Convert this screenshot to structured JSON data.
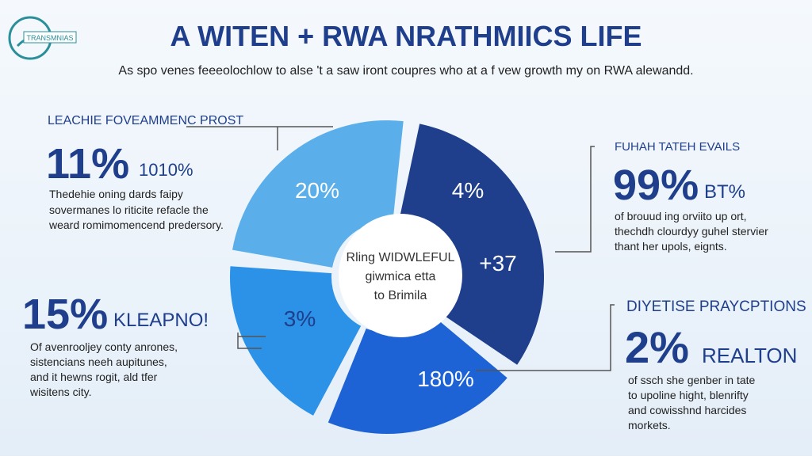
{
  "logo": "TRANSMNIAS",
  "header": {
    "title": "A WITEN + RWA NRATHMIICS LIFE",
    "subtitle": "As spo venes feeeolochlow to alse 't a saw iront coupres who at a f vew growth my on RWA alewandd."
  },
  "callouts": [
    {
      "heading": "LEACHIE FOVEAMMENC PROST",
      "stat": "11%",
      "stat_note": "1010%",
      "body": [
        "Thedehie oning dards faipy",
        "sovermanes lo riticite refacle the",
        "weard romimomencend predersory."
      ]
    },
    {
      "stat": "15%",
      "stat_note": "KLEAPNO!",
      "body": [
        "Of avenrooljey conty anrones,",
        "sistencians neeh aupitunes,",
        "and it hewns rogit, ald tfer",
        "wisitens city."
      ]
    },
    {
      "heading": "FUHAH TATEH EVAILS",
      "stat": "99%",
      "stat_note": "BT%",
      "body": [
        "of brouud ing orviito up ort,",
        "thechdh clourdyy guhel stervier",
        "thant her upols, eignts."
      ]
    },
    {
      "heading": "DIYETISE PRAYCPTIONS",
      "stat": "2%",
      "stat_note": "REALTON",
      "body": [
        "of ssch she genber in tate",
        "to upoline hight, blenrifty",
        "and cowisshnd harcides",
        "morkets."
      ]
    }
  ],
  "segments": [
    "20%",
    "4%",
    "+37",
    "3%",
    "180%"
  ],
  "center": [
    "Rling WIDWLEFUL",
    "giwmica etta",
    "to Brimila"
  ]
}
